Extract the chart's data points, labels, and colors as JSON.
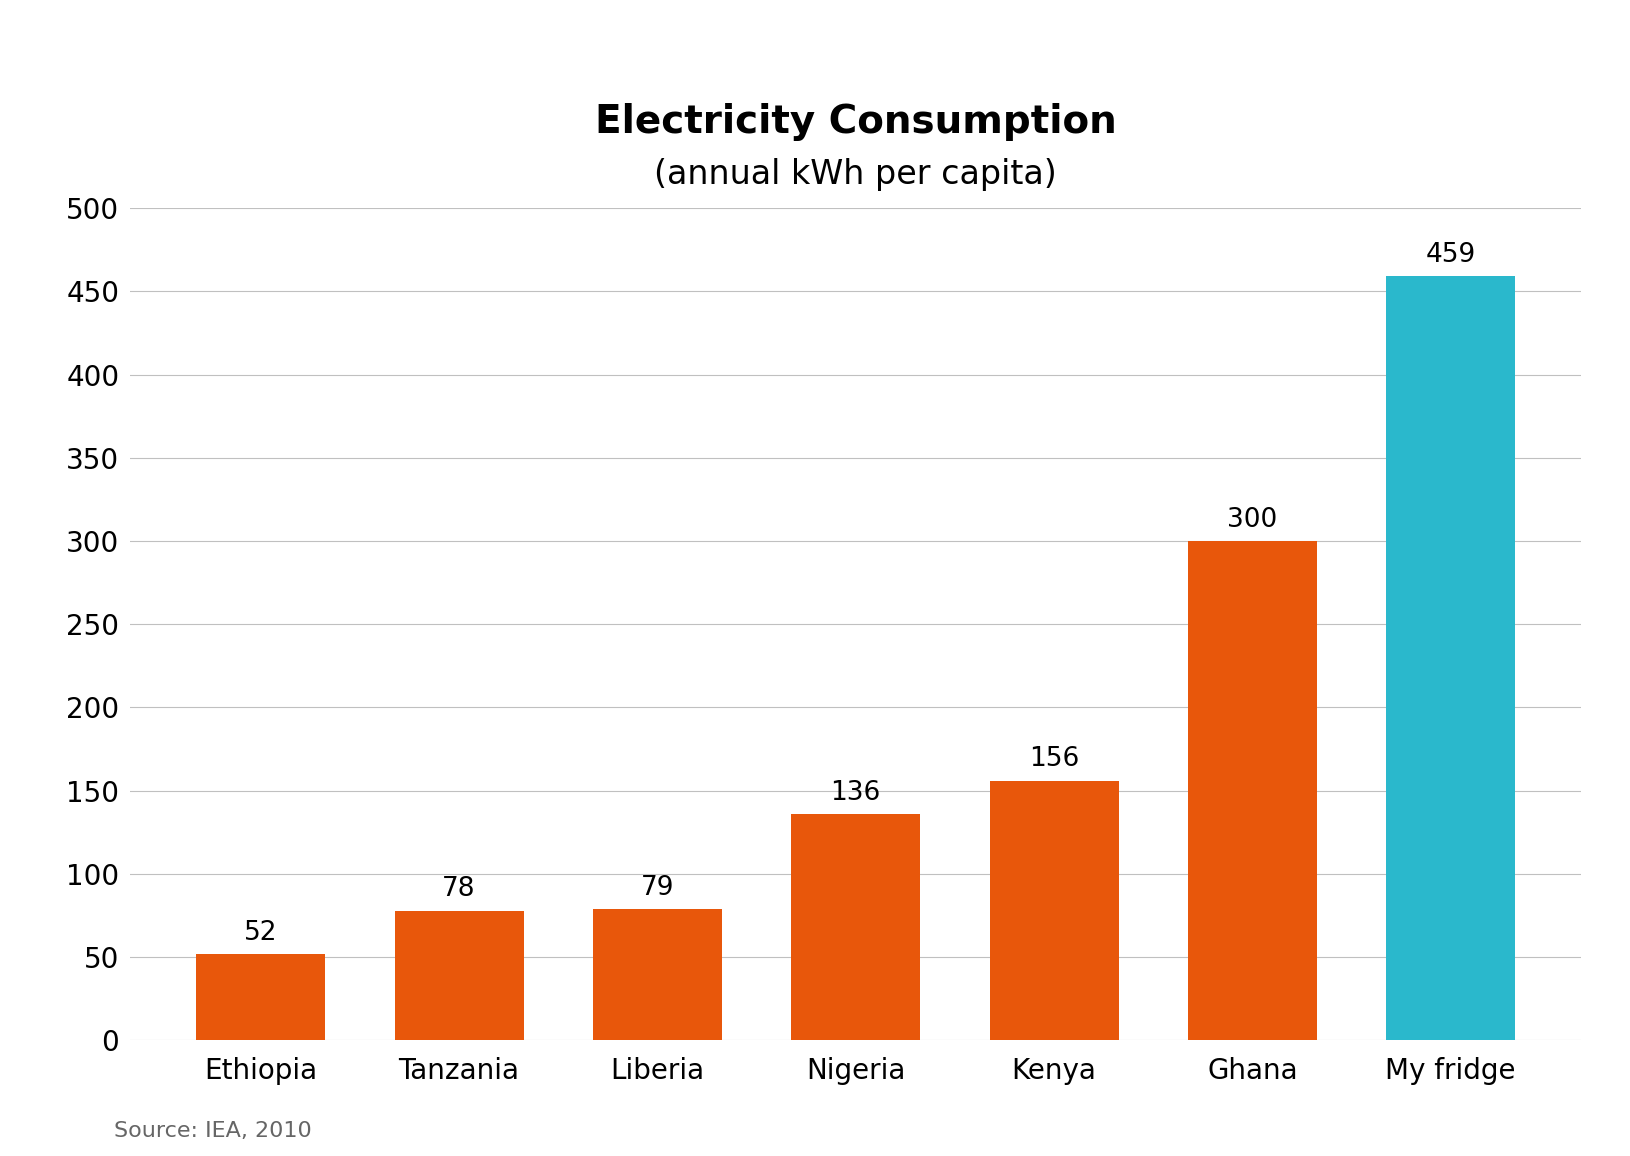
{
  "categories": [
    "Ethiopia",
    "Tanzania",
    "Liberia",
    "Nigeria",
    "Kenya",
    "Ghana",
    "My fridge"
  ],
  "values": [
    52,
    78,
    79,
    136,
    156,
    300,
    459
  ],
  "bar_colors": [
    "#E8570B",
    "#E8570B",
    "#E8570B",
    "#E8570B",
    "#E8570B",
    "#E8570B",
    "#2AB8CC"
  ],
  "title_line1": "Electricity Consumption",
  "title_line2": "(annual kWh per capita)",
  "ylim": [
    0,
    500
  ],
  "yticks": [
    0,
    50,
    100,
    150,
    200,
    250,
    300,
    350,
    400,
    450,
    500
  ],
  "source_text": "Source: IEA, 2010",
  "background_color": "#ffffff",
  "grid_color": "#c0c0c0",
  "title_fontsize": 28,
  "subtitle_fontsize": 24,
  "tick_fontsize": 20,
  "label_fontsize": 20,
  "annotation_fontsize": 19,
  "source_fontsize": 16,
  "bar_width": 0.65
}
